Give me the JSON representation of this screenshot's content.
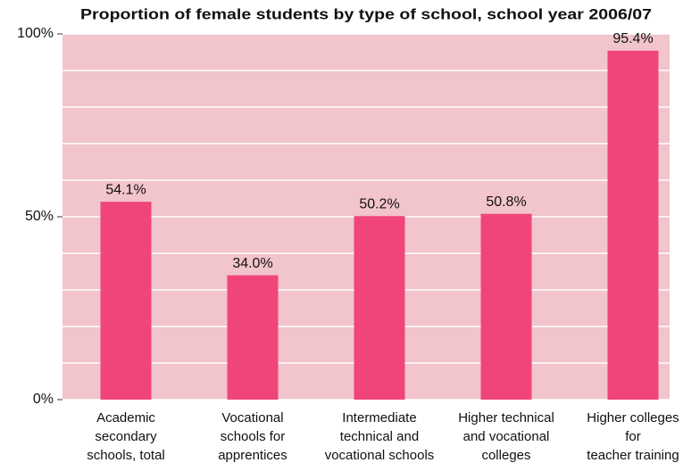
{
  "chart_data": {
    "type": "bar",
    "title": "Proportion of female students by type of school, school year 2006/07",
    "categories": [
      "Academic\nsecondary\nschools, total",
      "Vocational\nschools for\napprentices",
      "Intermediate\ntechnical and\nvocational schools",
      "Higher technical\nand vocational\ncolleges",
      "Higher colleges\nfor\nteacher training"
    ],
    "values": [
      54.1,
      34.0,
      50.2,
      50.8,
      95.4
    ],
    "value_labels": [
      "54.1%",
      "34.0%",
      "50.2%",
      "50.8%",
      "95.4%"
    ],
    "color": "#f0457a",
    "background": "#f2c4cb",
    "ylim": [
      0,
      100
    ],
    "yticks": [
      {
        "value": 0,
        "label": "0%"
      },
      {
        "value": 50,
        "label": "50%"
      },
      {
        "value": 100,
        "label": "100%"
      }
    ],
    "minor_yticks": [
      10,
      20,
      30,
      40,
      60,
      70,
      80,
      90
    ],
    "grid": true
  }
}
